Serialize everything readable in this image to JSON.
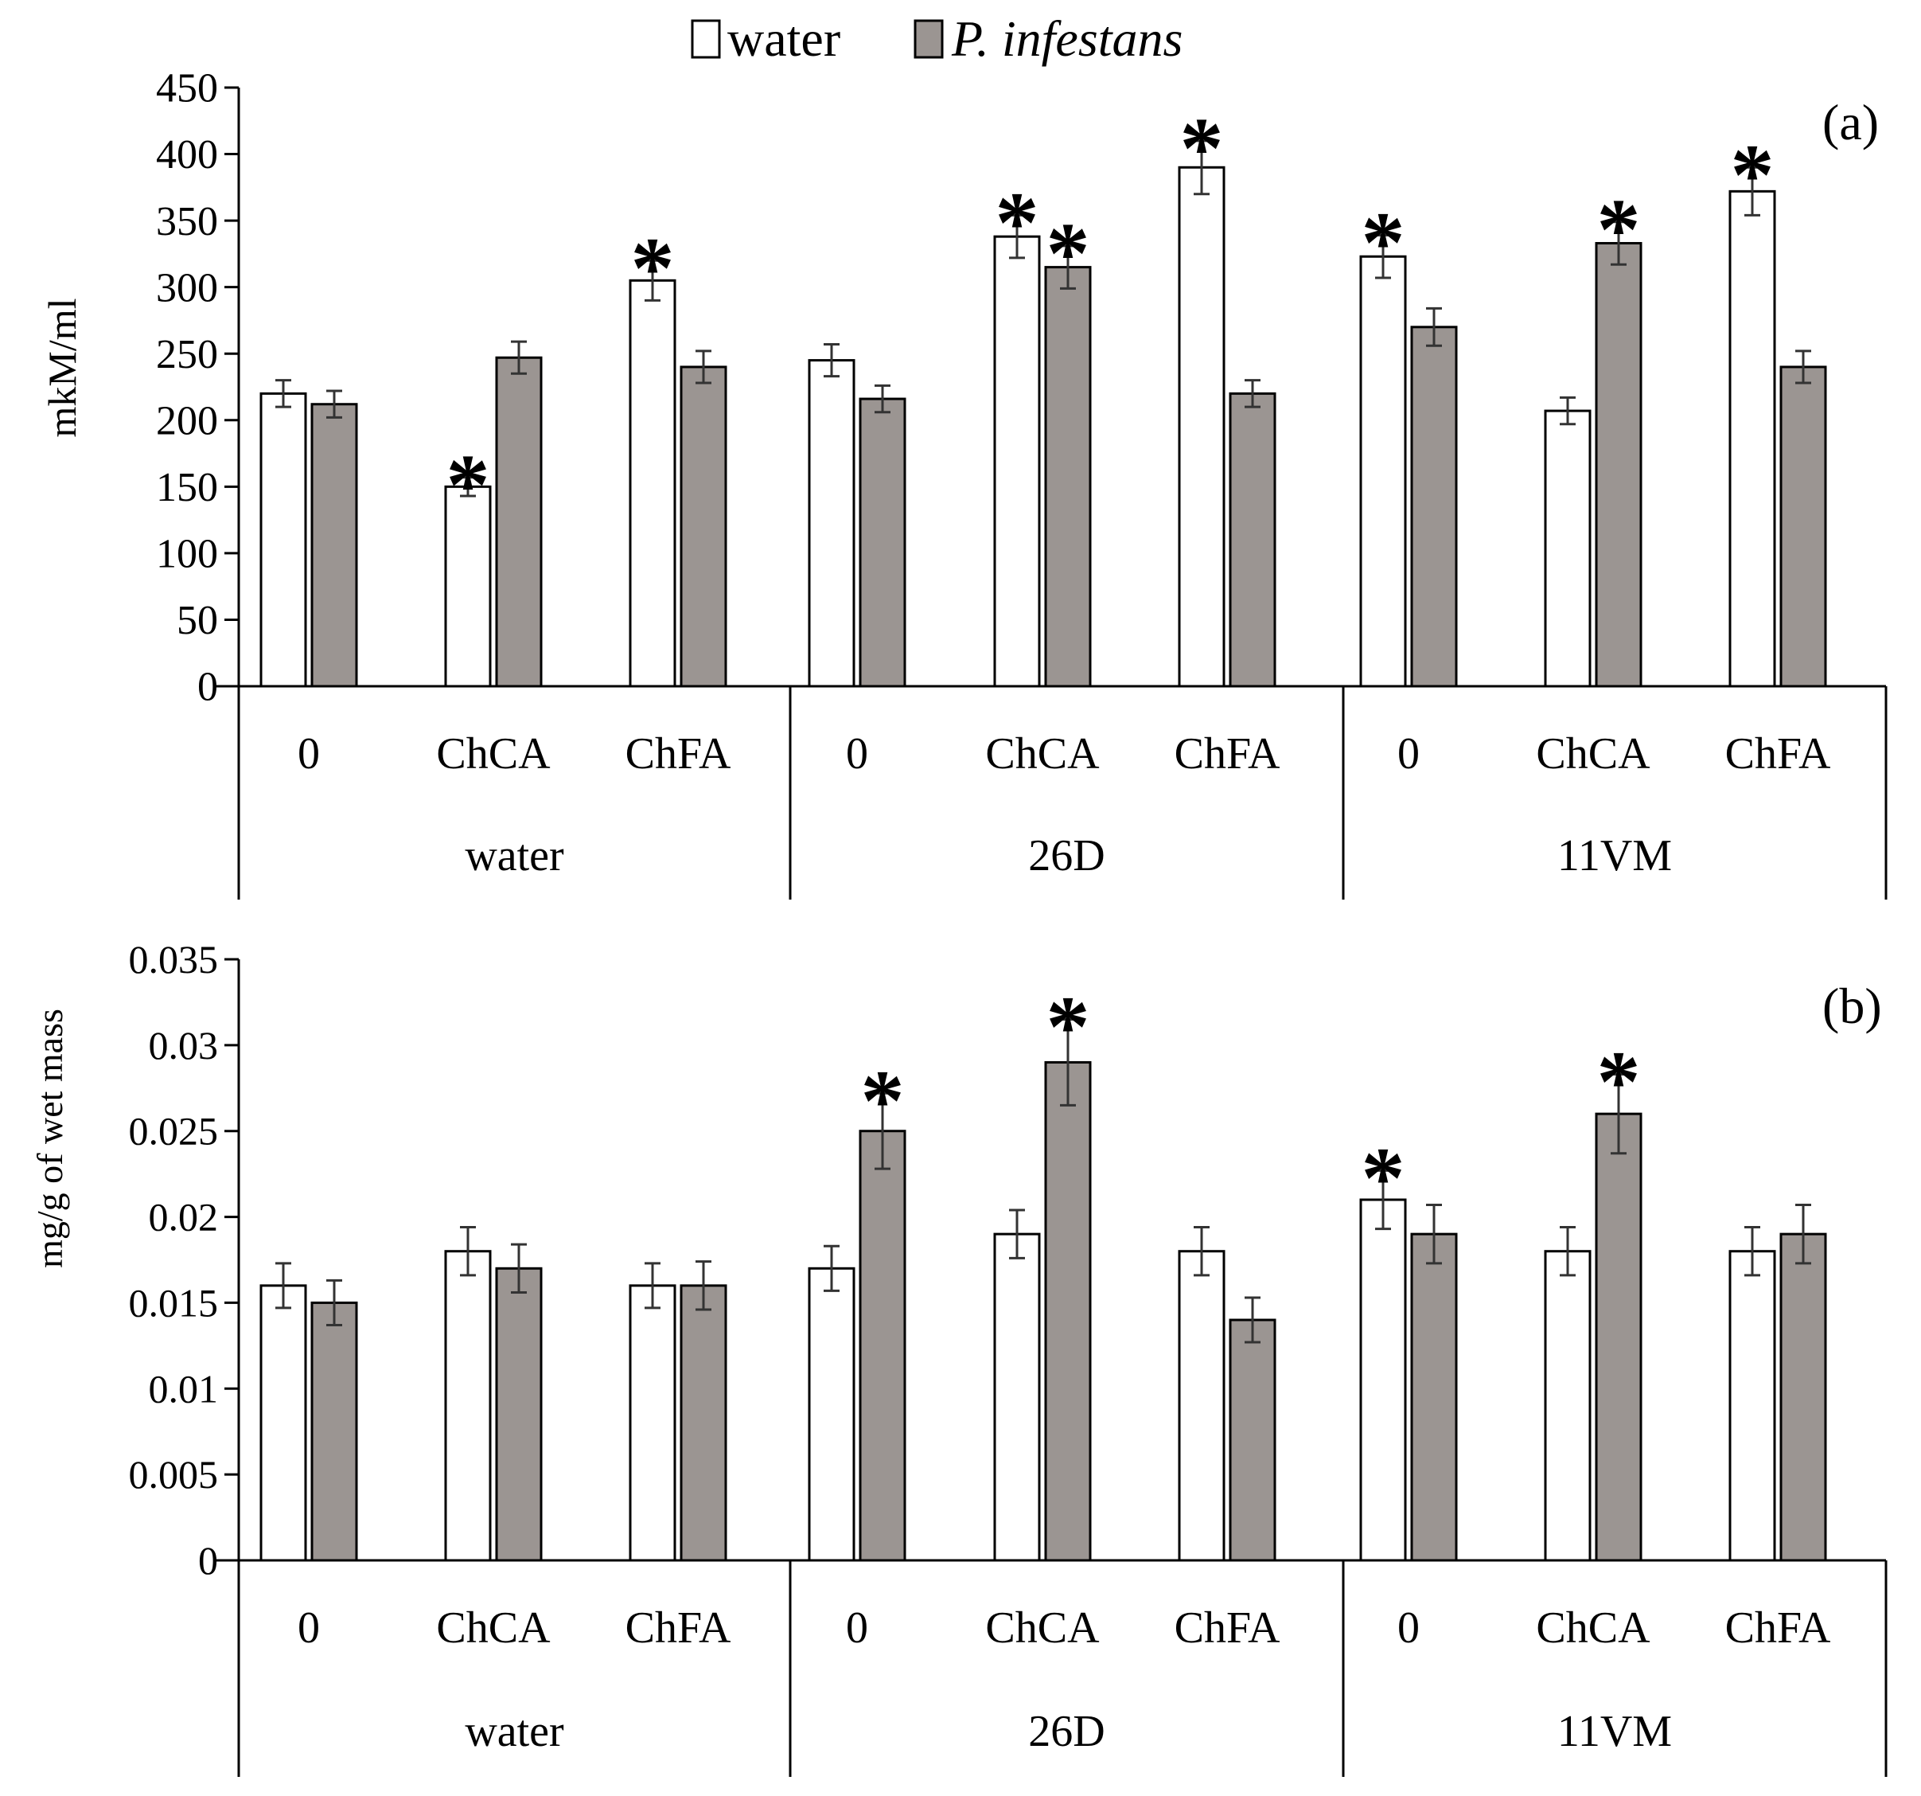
{
  "legend": {
    "water_label": "water",
    "infestans_label": "P. infestans"
  },
  "colors": {
    "water_fill": "#ffffff",
    "infestans_fill": "#9b9592",
    "stroke": "#000000",
    "error_bar": "#333333"
  },
  "chart_data": [
    {
      "type": "bar",
      "panel_label": "(a)",
      "ylabel": "mkM/ml",
      "ylim": [
        0,
        450
      ],
      "yticks": [
        0,
        50,
        100,
        150,
        200,
        250,
        300,
        350,
        400,
        450
      ],
      "ytick_labels": [
        "0",
        "50",
        "100",
        "150",
        "200",
        "250",
        "300",
        "350",
        "400",
        "450"
      ],
      "categories": [
        "0",
        "ChCA",
        "ChFA",
        "0",
        "ChCA",
        "ChFA",
        "0",
        "ChCA",
        "ChFA"
      ],
      "groups": [
        "water",
        "26D",
        "11VM"
      ],
      "series": [
        {
          "name": "water",
          "values": [
            220,
            150,
            305,
            245,
            338,
            390,
            323,
            207,
            372
          ],
          "errors": [
            10,
            7,
            15,
            12,
            16,
            20,
            16,
            10,
            18
          ],
          "significant": [
            false,
            true,
            true,
            false,
            true,
            true,
            true,
            false,
            true
          ]
        },
        {
          "name": "P. infestans",
          "values": [
            212,
            247,
            240,
            216,
            315,
            220,
            270,
            333,
            240
          ],
          "errors": [
            10,
            12,
            12,
            10,
            16,
            10,
            14,
            16,
            12
          ],
          "significant": [
            false,
            false,
            false,
            false,
            true,
            false,
            false,
            true,
            false
          ]
        }
      ],
      "significance_marker": "*"
    },
    {
      "type": "bar",
      "panel_label": "(b)",
      "ylabel": "mg/g of wet mass",
      "ylim": [
        0,
        0.035
      ],
      "yticks": [
        0,
        0.005,
        0.01,
        0.015,
        0.02,
        0.025,
        0.03,
        0.035
      ],
      "ytick_labels": [
        "0",
        "0.005",
        "0.01",
        "0.015",
        "0.02",
        "0.025",
        "0.03",
        "0.035"
      ],
      "categories": [
        "0",
        "ChCA",
        "ChFA",
        "0",
        "ChCA",
        "ChFA",
        "0",
        "ChCA",
        "ChFA"
      ],
      "groups": [
        "water",
        "26D",
        "11VM"
      ],
      "series": [
        {
          "name": "water",
          "values": [
            0.016,
            0.018,
            0.016,
            0.017,
            0.019,
            0.018,
            0.021,
            0.018,
            0.018
          ],
          "errors": [
            0.0013,
            0.0014,
            0.0013,
            0.0013,
            0.0014,
            0.0014,
            0.0017,
            0.0014,
            0.0014
          ],
          "significant": [
            false,
            false,
            false,
            false,
            false,
            false,
            true,
            false,
            false
          ]
        },
        {
          "name": "P. infestans",
          "values": [
            0.015,
            0.017,
            0.016,
            0.025,
            0.029,
            0.014,
            0.019,
            0.026,
            0.019
          ],
          "errors": [
            0.0013,
            0.0014,
            0.0014,
            0.0022,
            0.0025,
            0.0013,
            0.0017,
            0.0023,
            0.0017
          ],
          "significant": [
            false,
            false,
            false,
            true,
            true,
            false,
            false,
            true,
            false
          ]
        }
      ],
      "significance_marker": "*"
    }
  ]
}
